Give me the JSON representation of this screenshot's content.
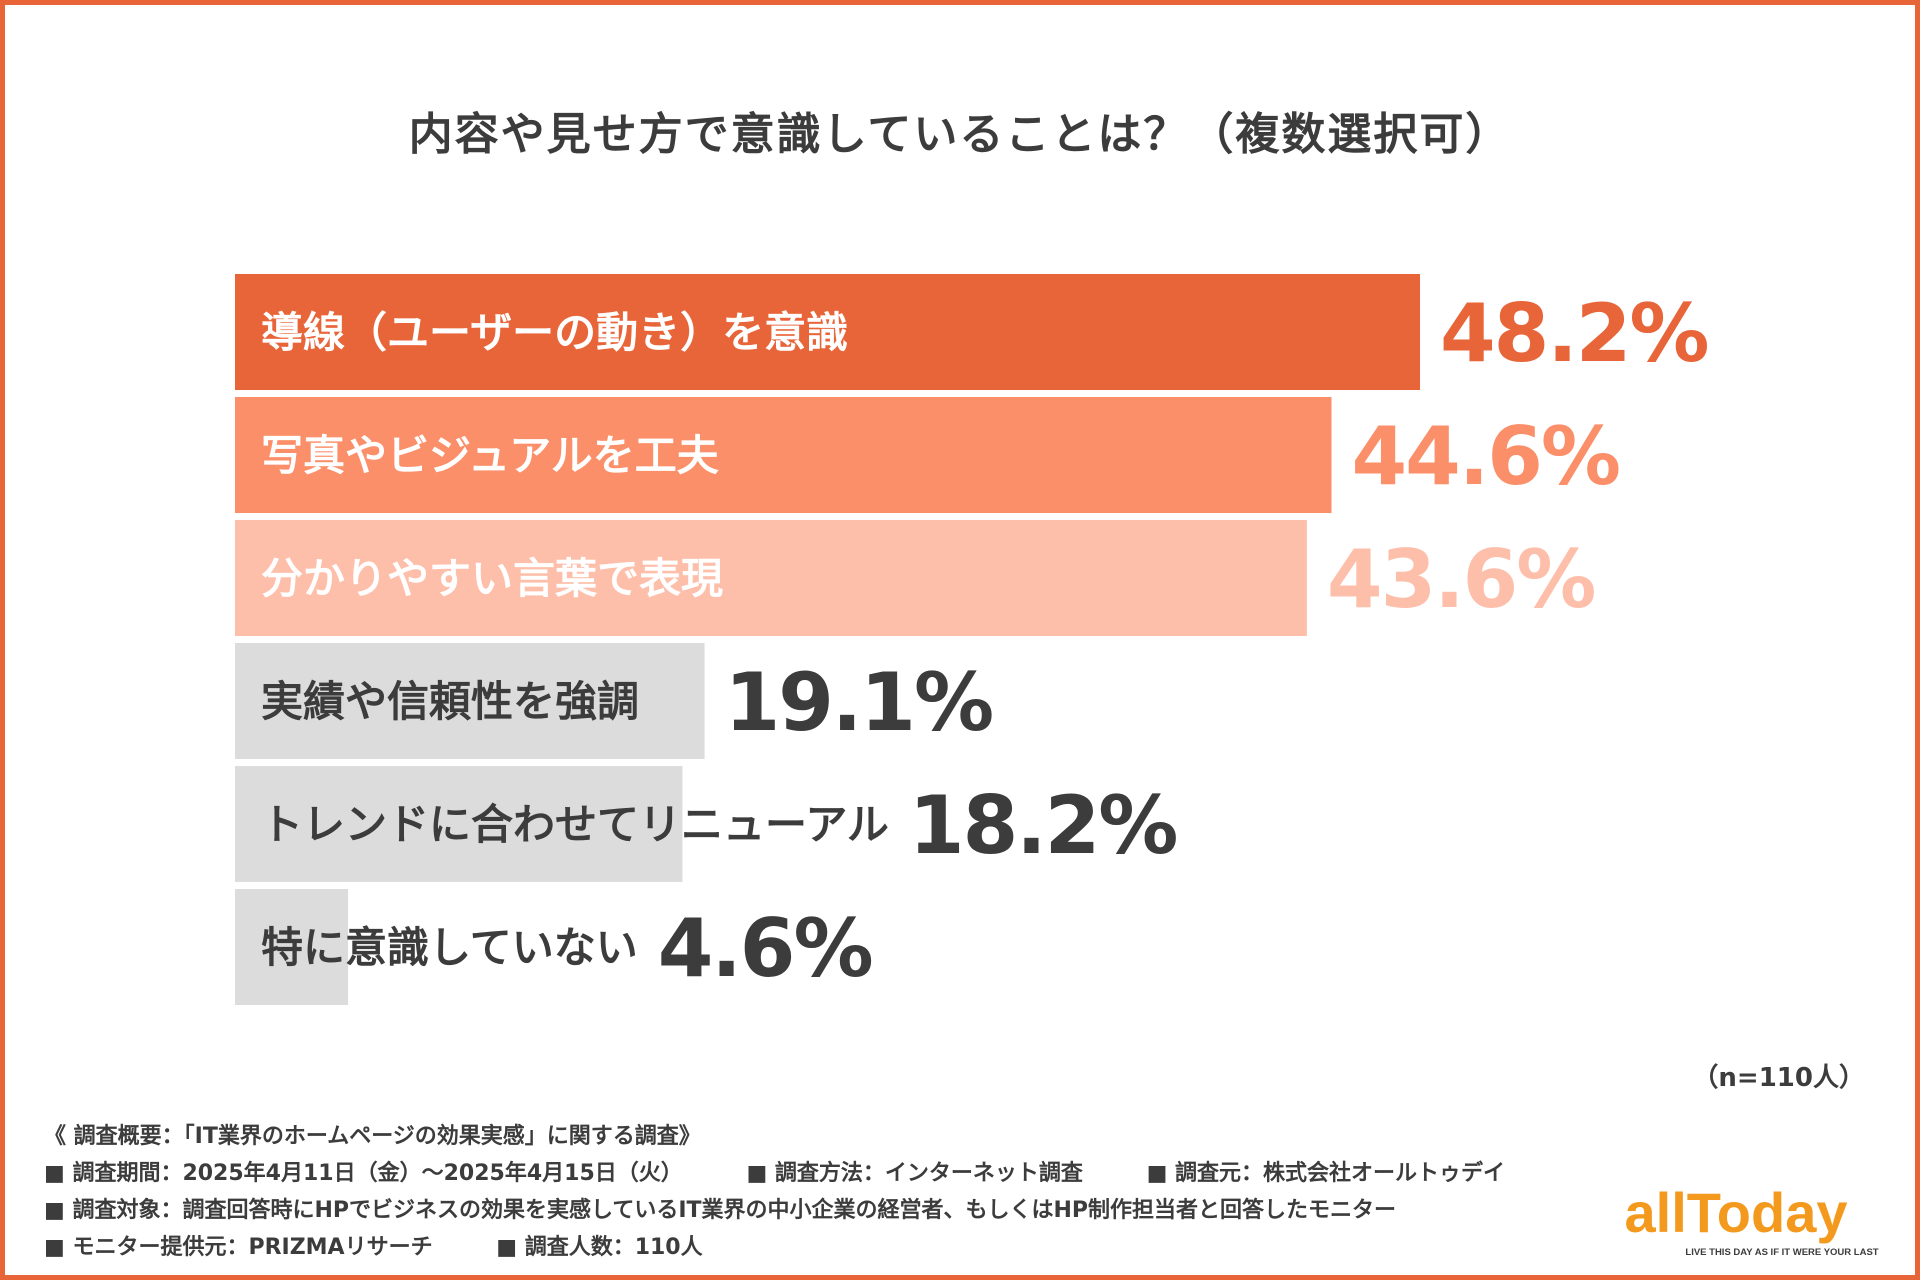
{
  "title": "内容や見せ方で意識していることは？（複数選択可）",
  "chart_data": {
    "type": "bar",
    "orientation": "horizontal",
    "title": "内容や見せ方で意識していることは？（複数選択可）",
    "categories": [
      "導線（ユーザーの動き）を意識",
      "写真やビジュアルを工夫",
      "分かりやすい言葉で表現",
      "実績や信頼性を強調",
      "トレンドに合わせてリニューアル",
      "特に意識していない"
    ],
    "values": [
      48.2,
      44.6,
      43.6,
      19.1,
      18.2,
      4.6
    ],
    "value_labels": [
      "48.2%",
      "44.6%",
      "43.6%",
      "19.1%",
      "18.2%",
      "4.6%"
    ],
    "unit": "%",
    "xlim": [
      0,
      48.2
    ],
    "bar_colors": [
      "#e8653a",
      "#fb8f69",
      "#fdbfaa",
      "#dcdcdc",
      "#dcdcdc",
      "#dcdcdc"
    ],
    "label_colors": [
      "#ffffff",
      "#ffffff",
      "#ffffff",
      "#3c3c3c",
      "#3c3c3c",
      "#3c3c3c"
    ],
    "value_colors": [
      "#e8653a",
      "#fb8f69",
      "#fdbfaa",
      "#3c3c3c",
      "#3c3c3c",
      "#3c3c3c"
    ],
    "sample_note": "（n=110人）"
  },
  "notes": {
    "summary": "《 調査概要：「IT業界のホームページの効果実感」に関する調査》",
    "period": "■ 調査期間：2025年4月11日（金）〜2025年4月15日（火）",
    "method": "■ 調査方法：インターネット調査",
    "source": "■ 調査元：株式会社オールトゥデイ",
    "target": "■ 調査対象：調査回答時にHPでビジネスの効果を実感しているIT業界の中小企業の経営者、もしくはHP制作担当者と回答したモニター",
    "provider": "■ モニター提供元：PRIZMAリサーチ",
    "count": "■ 調査人数：110人"
  },
  "logo": {
    "name": "allToday",
    "tagline": "LIVE THIS DAY AS IF IT WERE YOUR LAST",
    "color": "#f39a1e"
  }
}
